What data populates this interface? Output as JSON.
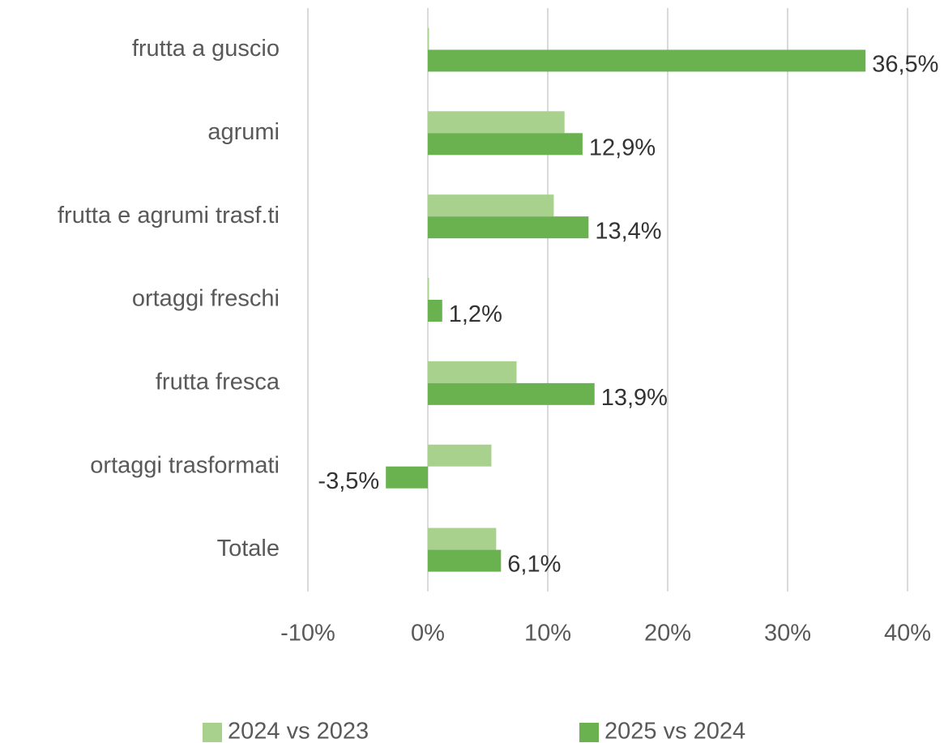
{
  "chart_data": {
    "type": "bar",
    "orientation": "horizontal",
    "categories": [
      "frutta a guscio",
      "agrumi",
      "frutta e agrumi trasf.ti",
      "ortaggi freschi",
      "frutta fresca",
      "ortaggi trasformati",
      "Totale"
    ],
    "series": [
      {
        "name": "2024 vs 2023",
        "color": "#a9d18e",
        "values": [
          0.1,
          11.4,
          10.5,
          0.1,
          7.4,
          5.3,
          5.7
        ]
      },
      {
        "name": "2025 vs 2024",
        "color": "#6ab150",
        "values": [
          36.5,
          12.9,
          13.4,
          1.2,
          13.9,
          -3.5,
          6.1
        ],
        "value_labels": [
          "36,5%",
          "12,9%",
          "13,4%",
          "1,2%",
          "13,9%",
          "-3,5%",
          "6,1%"
        ]
      }
    ],
    "xlim": [
      -10,
      40
    ],
    "xticks": [
      {
        "value": -10,
        "label": "-10%"
      },
      {
        "value": 0,
        "label": "0%"
      },
      {
        "value": 10,
        "label": "10%"
      },
      {
        "value": 20,
        "label": "20%"
      },
      {
        "value": 30,
        "label": "30%"
      },
      {
        "value": 40,
        "label": "40%"
      }
    ],
    "grid": true,
    "legend": "bottom"
  }
}
